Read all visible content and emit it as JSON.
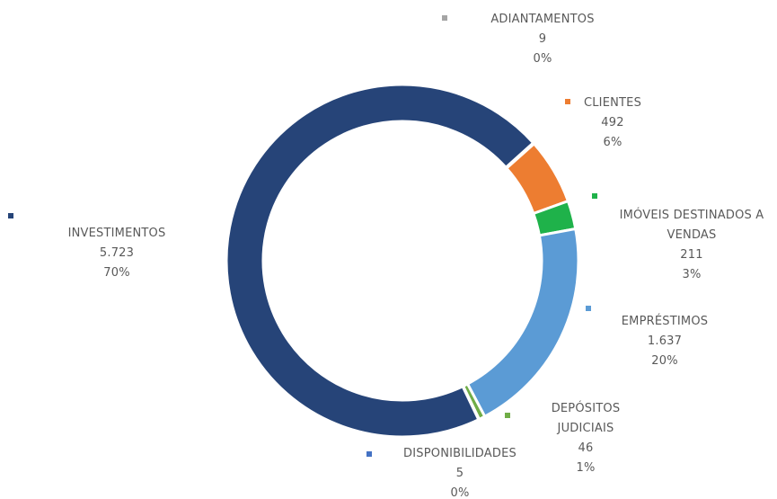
{
  "chart_data": {
    "type": "donut",
    "categories": [
      "ADIANTAMENTOS",
      "CLIENTES",
      "IMÓVEIS DESTINADOS A VENDAS",
      "EMPRÉSTIMOS",
      "DEPÓSITOS JUDICIAIS",
      "DISPONIBILIDADES",
      "INVESTIMENTOS"
    ],
    "values": [
      9,
      492,
      211,
      1637,
      46,
      5,
      5723
    ],
    "value_labels": [
      "9",
      "492",
      "211",
      "1.637",
      "46",
      "5",
      "5.723"
    ],
    "percent_labels": [
      "0%",
      "6%",
      "3%",
      "20%",
      "1%",
      "0%",
      "70%"
    ],
    "colors": [
      "#a5a5a5",
      "#ed7d31",
      "#1fb24a",
      "#5b9bd5",
      "#70ad47",
      "#4472c4",
      "#264478"
    ]
  }
}
